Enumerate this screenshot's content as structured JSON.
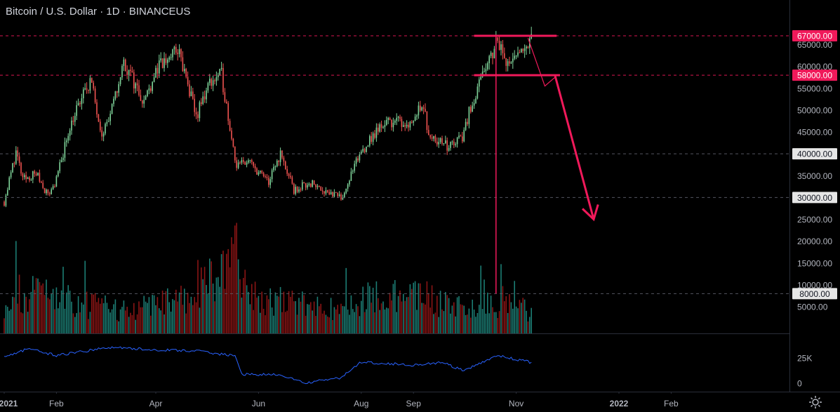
{
  "header": {
    "symbol_title": "Bitcoin / U.S. Dollar · 1D · BINANCEUS"
  },
  "colors": {
    "background": "#000000",
    "up": "#26a69a",
    "up_light": "#7fd49a",
    "down": "#ef5350",
    "down_dark": "#b71c1c",
    "annotation": "#f0195a",
    "indicator": "#2962ff",
    "grid": "#2a2e39",
    "axis_text": "#b2b5be"
  },
  "chart_data": {
    "type": "candlestick",
    "title": "Bitcoin / U.S. Dollar · 1D · BINANCEUS",
    "price_axis": {
      "ticks": [
        65000,
        60000,
        55000,
        50000,
        45000,
        40000,
        35000,
        30000,
        25000,
        20000,
        15000,
        10000,
        5000
      ],
      "tick_labels": [
        "65000.00",
        "60000.00",
        "55000.00",
        "50000.00",
        "45000.00",
        "40000.00",
        "35000.00",
        "30000.00",
        "25000.00",
        "20000.00",
        "15000.00",
        "10000.00",
        "5000.00"
      ]
    },
    "time_axis": {
      "labels": [
        "2021",
        "Feb",
        "Apr",
        "Jun",
        "Aug",
        "Sep",
        "Nov",
        "2022",
        "Feb"
      ]
    },
    "price_levels": [
      {
        "value": 67000,
        "label": "67000.00",
        "style": "dashed",
        "badge": "annotation"
      },
      {
        "value": 58000,
        "label": "58000.00",
        "style": "dashed",
        "badge": "annotation"
      },
      {
        "value": 40000,
        "label": "40000.00",
        "style": "dashed",
        "badge": "light"
      },
      {
        "value": 30000,
        "label": "30000.00",
        "style": "dashed",
        "badge": "light"
      },
      {
        "value": 8000,
        "label": "8000.00",
        "style": "dashed",
        "badge": "light"
      }
    ],
    "price_path": [
      [
        "2021-01-01",
        29000
      ],
      [
        "2021-01-08",
        40500
      ],
      [
        "2021-01-12",
        34000
      ],
      [
        "2021-01-20",
        35500
      ],
      [
        "2021-01-27",
        30500
      ],
      [
        "2021-02-01",
        34000
      ],
      [
        "2021-02-09",
        46500
      ],
      [
        "2021-02-21",
        57000
      ],
      [
        "2021-02-28",
        45000
      ],
      [
        "2021-03-05",
        48500
      ],
      [
        "2021-03-13",
        61000
      ],
      [
        "2021-03-25",
        52000
      ],
      [
        "2021-04-01",
        59000
      ],
      [
        "2021-04-14",
        64000
      ],
      [
        "2021-04-25",
        48500
      ],
      [
        "2021-05-03",
        56500
      ],
      [
        "2021-05-10",
        58000
      ],
      [
        "2021-05-19",
        37000
      ],
      [
        "2021-05-25",
        38500
      ],
      [
        "2021-06-07",
        33500
      ],
      [
        "2021-06-14",
        40000
      ],
      [
        "2021-06-22",
        31500
      ],
      [
        "2021-07-01",
        33500
      ],
      [
        "2021-07-20",
        29800
      ],
      [
        "2021-08-01",
        40500
      ],
      [
        "2021-08-14",
        47000
      ],
      [
        "2021-08-20",
        47500
      ],
      [
        "2021-08-31",
        47000
      ],
      [
        "2021-09-06",
        52000
      ],
      [
        "2021-09-10",
        45000
      ],
      [
        "2021-09-21",
        41500
      ],
      [
        "2021-09-30",
        43800
      ],
      [
        "2021-10-05",
        51000
      ],
      [
        "2021-10-15",
        60000
      ],
      [
        "2021-10-20",
        66000
      ],
      [
        "2021-10-28",
        60500
      ],
      [
        "2021-11-02",
        62000
      ],
      [
        "2021-11-08",
        66000
      ],
      [
        "2021-11-10",
        66500
      ]
    ],
    "volume_path": [
      [
        "2021-01-01",
        2400
      ],
      [
        "2021-01-11",
        3500
      ],
      [
        "2021-02-08",
        2800
      ],
      [
        "2021-03-15",
        1900
      ],
      [
        "2021-04-18",
        3000
      ],
      [
        "2021-05-19",
        6500
      ],
      [
        "2021-06-01",
        3000
      ],
      [
        "2021-07-01",
        2300
      ],
      [
        "2021-07-21",
        2100
      ],
      [
        "2021-08-05",
        3000
      ],
      [
        "2021-09-07",
        3200
      ],
      [
        "2021-10-01",
        2200
      ],
      [
        "2021-10-20",
        2700
      ],
      [
        "2021-11-10",
        2000
      ]
    ],
    "indicator_path": [
      [
        "2021-01-01",
        26000
      ],
      [
        "2021-01-15",
        34000
      ],
      [
        "2021-02-01",
        27500
      ],
      [
        "2021-03-05",
        35500
      ],
      [
        "2021-04-01",
        33000
      ],
      [
        "2021-04-25",
        32000
      ],
      [
        "2021-05-18",
        27000
      ],
      [
        "2021-05-22",
        9000
      ],
      [
        "2021-06-15",
        8000
      ],
      [
        "2021-06-28",
        0
      ],
      [
        "2021-07-20",
        5500
      ],
      [
        "2021-08-01",
        21000
      ],
      [
        "2021-09-01",
        18000
      ],
      [
        "2021-09-18",
        20500
      ],
      [
        "2021-10-01",
        12000
      ],
      [
        "2021-10-20",
        27500
      ],
      [
        "2021-11-10",
        20500
      ]
    ],
    "indicator_axis": {
      "ticks": [
        25000,
        0
      ],
      "tick_labels": [
        "25K",
        "0"
      ]
    },
    "annotations": {
      "top_resistance": {
        "value": 67000,
        "from": "2021-10-07",
        "to": "2021-11-25"
      },
      "neckline": {
        "value": 58000,
        "from": "2021-10-07",
        "to": "2021-11-27"
      },
      "pullback_path": [
        [
          "2021-11-08",
          66500
        ],
        [
          "2021-11-18",
          55500
        ],
        [
          "2021-11-24",
          57500
        ]
      ],
      "projection_arrow": [
        [
          "2021-11-24",
          58000
        ],
        [
          "2021-12-17",
          25000
        ]
      ],
      "measured_move_line": {
        "date": "2021-10-20",
        "from": 67000,
        "to": 8000
      }
    }
  }
}
